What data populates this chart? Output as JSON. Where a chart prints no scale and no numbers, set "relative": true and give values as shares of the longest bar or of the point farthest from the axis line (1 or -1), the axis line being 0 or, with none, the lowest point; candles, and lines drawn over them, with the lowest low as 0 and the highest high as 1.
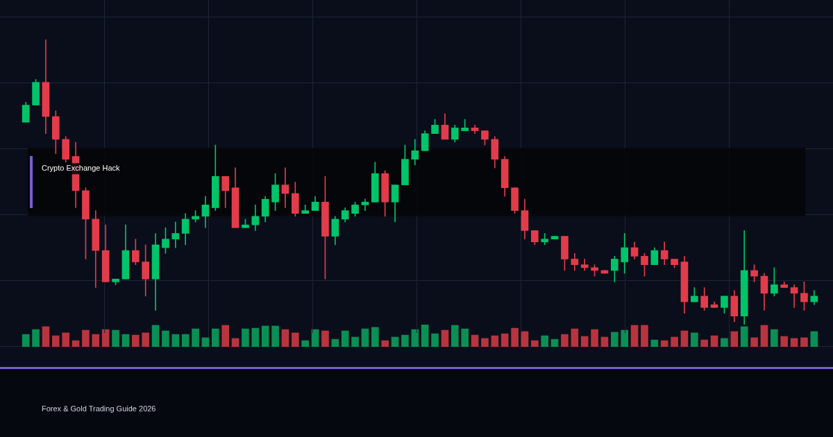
{
  "chart_data": [
    {
      "type": "candlestick",
      "relative": true,
      "grid": true,
      "categories": [
        null,
        null,
        null,
        null,
        null,
        null,
        null,
        null,
        null,
        null,
        null,
        null,
        null,
        null,
        null,
        null,
        null,
        null,
        null,
        null,
        null,
        null,
        null,
        null,
        null,
        null,
        null,
        null,
        null,
        null,
        null,
        null,
        null,
        null,
        null,
        null,
        null,
        null,
        null,
        null,
        null,
        null,
        null,
        null,
        null,
        null,
        null,
        null,
        null,
        null,
        null,
        null,
        null,
        null,
        null,
        null,
        null,
        null,
        null,
        null,
        null,
        null,
        null,
        null,
        null,
        null,
        null,
        null,
        null,
        null,
        null,
        null,
        null,
        null,
        null,
        null,
        null,
        null,
        null,
        null
      ],
      "ohlc": [
        [
          0.71,
          0.78,
          0.71,
          0.77
        ],
        [
          0.77,
          0.86,
          0.77,
          0.85
        ],
        [
          0.85,
          1,
          0.67,
          0.73
        ],
        [
          0.73,
          0.75,
          0.6,
          0.65
        ],
        [
          0.65,
          0.66,
          0.57,
          0.58
        ],
        [
          0.59,
          0.64,
          0.41,
          0.47
        ],
        [
          0.47,
          0.48,
          0.23,
          0.37
        ],
        [
          0.37,
          0.4,
          0.13,
          0.26
        ],
        [
          0.26,
          0.35,
          0.15,
          0.15
        ],
        [
          0.15,
          0.16,
          0.14,
          0.16
        ],
        [
          0.16,
          0.35,
          0.16,
          0.26
        ],
        [
          0.26,
          0.3,
          0.21,
          0.22
        ],
        [
          0.22,
          0.28,
          0.1,
          0.16
        ],
        [
          0.16,
          0.32,
          0.05,
          0.28
        ],
        [
          0.27,
          0.34,
          0.25,
          0.3
        ],
        [
          0.3,
          0.36,
          0.27,
          0.32
        ],
        [
          0.32,
          0.39,
          0.28,
          0.37
        ],
        [
          0.37,
          0.4,
          0.36,
          0.38
        ],
        [
          0.38,
          0.45,
          0.34,
          0.42
        ],
        [
          0.41,
          0.63,
          0.4,
          0.52
        ],
        [
          0.52,
          0.52,
          0.41,
          0.47
        ],
        [
          0.48,
          0.55,
          0.34,
          0.34
        ],
        [
          0.34,
          0.37,
          0.34,
          0.35
        ],
        [
          0.35,
          0.42,
          0.33,
          0.38
        ],
        [
          0.38,
          0.45,
          0.36,
          0.44
        ],
        [
          0.43,
          0.53,
          0.4,
          0.49
        ],
        [
          0.49,
          0.55,
          0.41,
          0.46
        ],
        [
          0.46,
          0.5,
          0.38,
          0.39
        ],
        [
          0.39,
          0.42,
          0.39,
          0.4
        ],
        [
          0.4,
          0.45,
          0.4,
          0.43
        ],
        [
          0.43,
          0.52,
          0.16,
          0.31
        ],
        [
          0.31,
          0.38,
          0.28,
          0.37
        ],
        [
          0.37,
          0.41,
          0.36,
          0.4
        ],
        [
          0.39,
          0.43,
          0.38,
          0.42
        ],
        [
          0.42,
          0.44,
          0.4,
          0.43
        ],
        [
          0.43,
          0.57,
          0.43,
          0.53
        ],
        [
          0.53,
          0.54,
          0.38,
          0.43
        ],
        [
          0.43,
          0.49,
          0.36,
          0.49
        ],
        [
          0.49,
          0.63,
          0.49,
          0.58
        ],
        [
          0.58,
          0.65,
          0.56,
          0.61
        ],
        [
          0.61,
          0.68,
          0.61,
          0.67
        ],
        [
          0.67,
          0.72,
          0.67,
          0.7
        ],
        [
          0.7,
          0.74,
          0.65,
          0.65
        ],
        [
          0.65,
          0.7,
          0.64,
          0.69
        ],
        [
          0.68,
          0.72,
          0.68,
          0.69
        ],
        [
          0.69,
          0.7,
          0.67,
          0.68
        ],
        [
          0.68,
          0.68,
          0.63,
          0.65
        ],
        [
          0.65,
          0.66,
          0.55,
          0.58
        ],
        [
          0.58,
          0.59,
          0.45,
          0.48
        ],
        [
          0.48,
          0.48,
          0.39,
          0.4
        ],
        [
          0.4,
          0.44,
          0.3,
          0.33
        ],
        [
          0.33,
          0.33,
          0.28,
          0.29
        ],
        [
          0.29,
          0.32,
          0.28,
          0.3
        ],
        [
          0.3,
          0.31,
          0.3,
          0.31
        ],
        [
          0.31,
          0.31,
          0.19,
          0.23
        ],
        [
          0.23,
          0.25,
          0.19,
          0.21
        ],
        [
          0.21,
          0.23,
          0.19,
          0.2
        ],
        [
          0.2,
          0.21,
          0.17,
          0.19
        ],
        [
          0.19,
          0.19,
          0.18,
          0.18
        ],
        [
          0.19,
          0.24,
          0.15,
          0.23
        ],
        [
          0.22,
          0.32,
          0.18,
          0.27
        ],
        [
          0.27,
          0.29,
          0.23,
          0.24
        ],
        [
          0.24,
          0.25,
          0.17,
          0.21
        ],
        [
          0.21,
          0.27,
          0.21,
          0.26
        ],
        [
          0.26,
          0.29,
          0.21,
          0.23
        ],
        [
          0.23,
          0.23,
          0.2,
          0.21
        ],
        [
          0.22,
          0.24,
          0.04,
          0.08
        ],
        [
          0.08,
          0.13,
          0.08,
          0.1
        ],
        [
          0.1,
          0.13,
          0.05,
          0.06
        ],
        [
          0.07,
          0.08,
          0.06,
          0.06
        ],
        [
          0.06,
          0.1,
          0.04,
          0.1
        ],
        [
          0.1,
          0.12,
          0.01,
          0.03
        ],
        [
          0.03,
          0.33,
          0,
          0.19
        ],
        [
          0.19,
          0.21,
          0.15,
          0.17
        ],
        [
          0.17,
          0.18,
          0.05,
          0.11
        ],
        [
          0.11,
          0.2,
          0.1,
          0.14
        ],
        [
          0.14,
          0.15,
          0.13,
          0.13
        ],
        [
          0.13,
          0.14,
          0.06,
          0.11
        ],
        [
          0.11,
          0.15,
          0.05,
          0.08
        ],
        [
          0.08,
          0.12,
          0.07,
          0.1
        ]
      ],
      "colors": [
        "#00c46a",
        "#00c46a",
        "#e23c4b",
        "#e23c4b",
        "#e23c4b",
        "#e23c4b",
        "#e23c4b",
        "#e23c4b",
        "#e23c4b",
        "#00c46a",
        "#00c46a",
        "#e23c4b",
        "#e23c4b",
        "#00c46a",
        "#00c46a",
        "#00c46a",
        "#00c46a",
        "#00c46a",
        "#00c46a",
        "#00c46a",
        "#e23c4b",
        "#e23c4b",
        "#00c46a",
        "#00c46a",
        "#00c46a",
        "#00c46a",
        "#e23c4b",
        "#e23c4b",
        "#00c46a",
        "#00c46a",
        "#e23c4b",
        "#00c46a",
        "#00c46a",
        "#00c46a",
        "#00c46a",
        "#00c46a",
        "#e23c4b",
        "#00c46a",
        "#00c46a",
        "#00c46a",
        "#00c46a",
        "#00c46a",
        "#e23c4b",
        "#00c46a",
        "#00c46a",
        "#e23c4b",
        "#e23c4b",
        "#e23c4b",
        "#e23c4b",
        "#e23c4b",
        "#e23c4b",
        "#e23c4b",
        "#00c46a",
        "#00c46a",
        "#e23c4b",
        "#e23c4b",
        "#e23c4b",
        "#e23c4b",
        "#e23c4b",
        "#00c46a",
        "#00c46a",
        "#e23c4b",
        "#e23c4b",
        "#00c46a",
        "#e23c4b",
        "#e23c4b",
        "#e23c4b",
        "#00c46a",
        "#e23c4b",
        "#e23c4b",
        "#00c46a",
        "#e23c4b",
        "#00c46a",
        "#e23c4b",
        "#e23c4b",
        "#00c46a",
        "#e23c4b",
        "#e23c4b",
        "#e23c4b",
        "#00c46a"
      ],
      "bands": [
        {
          "axis": "y",
          "from": 0.38,
          "to": 0.62,
          "label": "Crypto Exchange Hack",
          "color": "#050508"
        }
      ],
      "annotations": [
        "Forex & Gold Trading Guide 2026"
      ]
    },
    {
      "type": "bar",
      "relative": true,
      "grid": true,
      "categories": [
        null,
        null,
        null,
        null,
        null,
        null,
        null,
        null,
        null,
        null,
        null,
        null,
        null,
        null,
        null,
        null,
        null,
        null,
        null,
        null,
        null,
        null,
        null,
        null,
        null,
        null,
        null,
        null,
        null,
        null,
        null,
        null,
        null,
        null,
        null,
        null,
        null,
        null,
        null,
        null,
        null,
        null,
        null,
        null,
        null,
        null,
        null,
        null,
        null,
        null,
        null,
        null,
        null,
        null,
        null,
        null,
        null,
        null,
        null,
        null,
        null,
        null,
        null,
        null,
        null,
        null,
        null,
        null,
        null,
        null,
        null,
        null,
        null,
        null,
        null,
        null,
        null,
        null,
        null,
        null
      ],
      "values": [
        0.56,
        0.78,
        0.91,
        0.5,
        0.63,
        0.28,
        0.75,
        0.56,
        0.78,
        0.75,
        0.56,
        0.53,
        0.63,
        0.97,
        0.72,
        0.56,
        0.56,
        0.81,
        0.41,
        0.81,
        0.97,
        0.38,
        0.81,
        0.84,
        0.94,
        0.94,
        0.78,
        0.63,
        0.28,
        0.78,
        0.72,
        0.34,
        0.72,
        0.44,
        0.81,
        0.88,
        0.28,
        0.44,
        0.53,
        0.78,
        1,
        0.59,
        0.75,
        0.97,
        0.81,
        0.53,
        0.38,
        0.5,
        0.59,
        0.84,
        0.69,
        0.28,
        0.5,
        0.34,
        0.56,
        0.81,
        0.47,
        0.78,
        0.44,
        0.66,
        0.75,
        0.97,
        0.97,
        0.31,
        0.28,
        0.44,
        0.72,
        0.63,
        0.31,
        0.5,
        0.38,
        0.69,
        0.91,
        0.41,
        0.97,
        0.78,
        0.47,
        0.38,
        0.41,
        0.69
      ],
      "colors": [
        "#0a8f55",
        "#0a8f55",
        "#b8343f",
        "#b8343f",
        "#b8343f",
        "#b8343f",
        "#b8343f",
        "#b8343f",
        "#b8343f",
        "#0a8f55",
        "#0a8f55",
        "#b8343f",
        "#b8343f",
        "#0a8f55",
        "#0a8f55",
        "#0a8f55",
        "#0a8f55",
        "#0a8f55",
        "#0a8f55",
        "#0a8f55",
        "#b8343f",
        "#b8343f",
        "#0a8f55",
        "#0a8f55",
        "#0a8f55",
        "#0a8f55",
        "#b8343f",
        "#b8343f",
        "#0a8f55",
        "#0a8f55",
        "#b8343f",
        "#0a8f55",
        "#0a8f55",
        "#0a8f55",
        "#0a8f55",
        "#0a8f55",
        "#b8343f",
        "#0a8f55",
        "#0a8f55",
        "#0a8f55",
        "#0a8f55",
        "#0a8f55",
        "#b8343f",
        "#0a8f55",
        "#0a8f55",
        "#b8343f",
        "#b8343f",
        "#b8343f",
        "#b8343f",
        "#b8343f",
        "#b8343f",
        "#b8343f",
        "#0a8f55",
        "#0a8f55",
        "#b8343f",
        "#b8343f",
        "#b8343f",
        "#b8343f",
        "#b8343f",
        "#0a8f55",
        "#0a8f55",
        "#b8343f",
        "#b8343f",
        "#0a8f55",
        "#b8343f",
        "#b8343f",
        "#b8343f",
        "#0a8f55",
        "#b8343f",
        "#b8343f",
        "#0a8f55",
        "#b8343f",
        "#0a8f55",
        "#b8343f",
        "#b8343f",
        "#0a8f55",
        "#b8343f",
        "#b8343f",
        "#b8343f",
        "#0a8f55"
      ]
    }
  ]
}
